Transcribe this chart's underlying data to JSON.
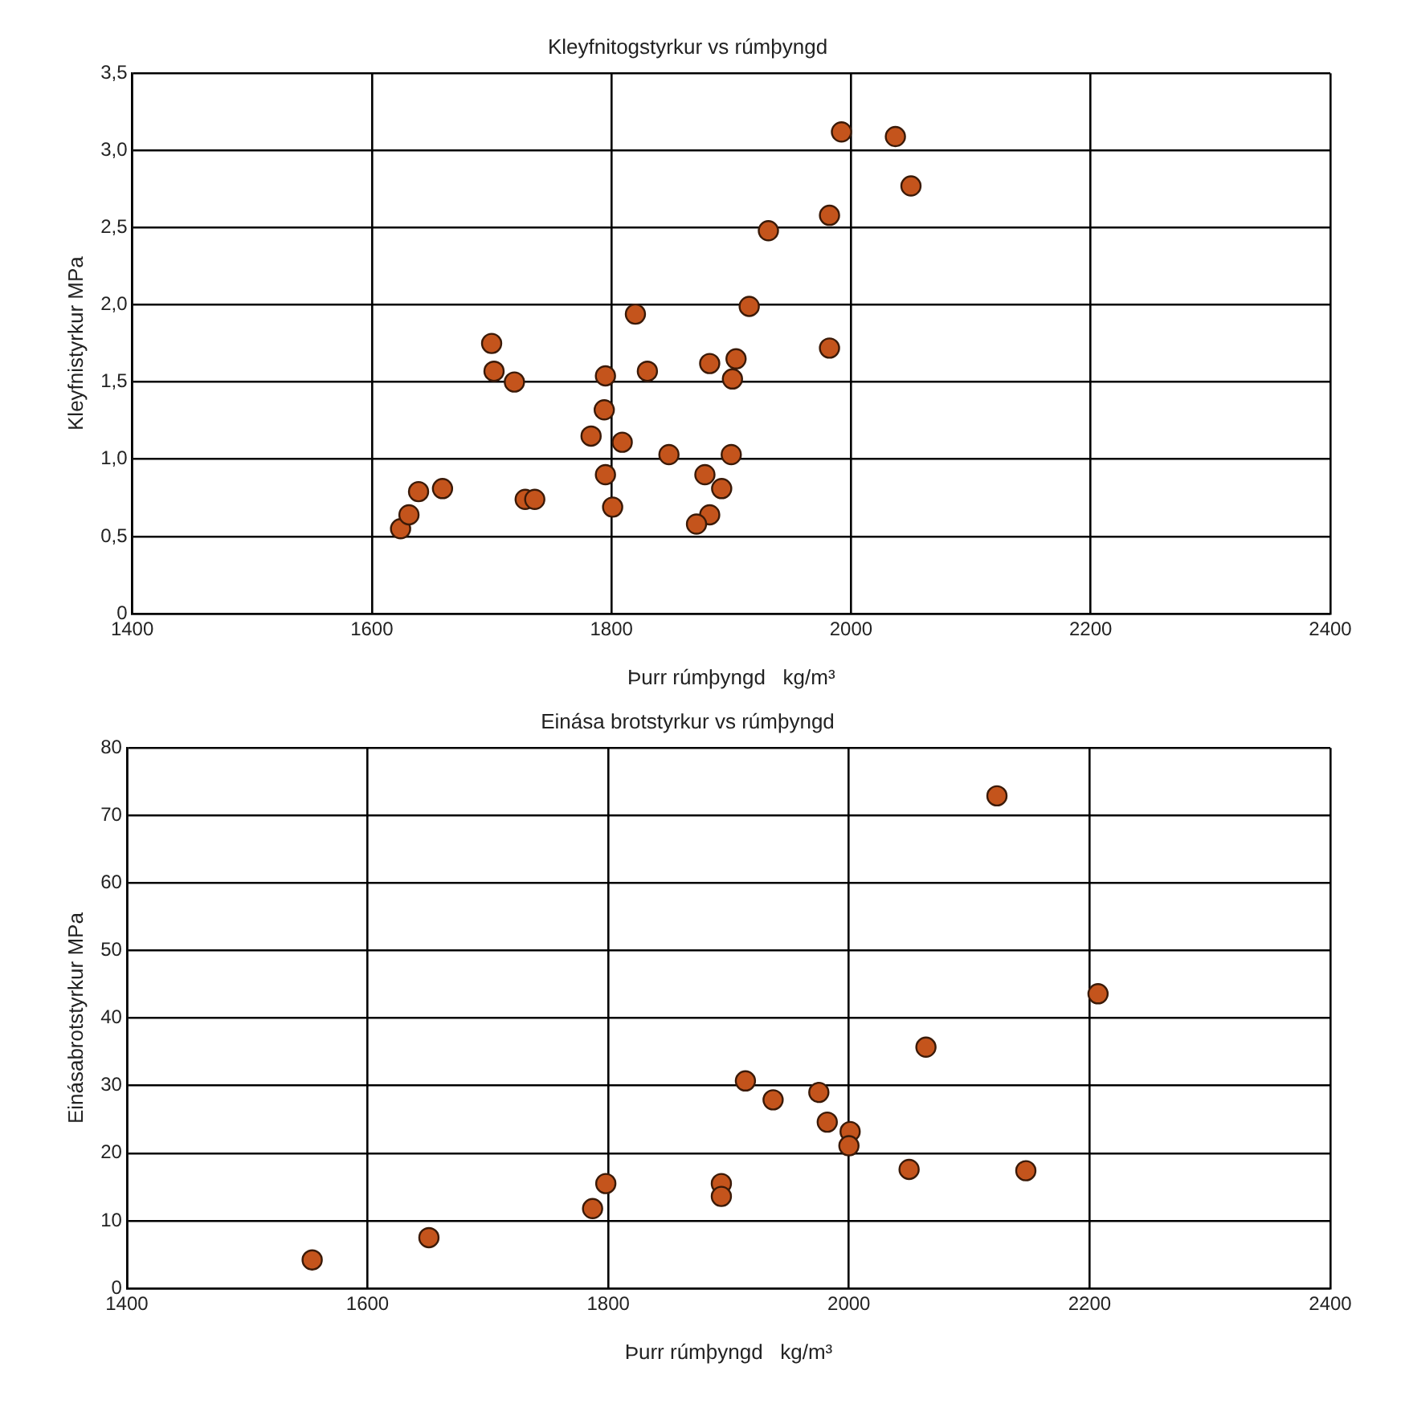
{
  "chart_data": [
    {
      "type": "scatter",
      "title": "Kleyfnitogstyrkur vs rúmþyngd",
      "xlabel": "Þurr rúmþyngd   kg/m³",
      "ylabel": "Kleyfnistyrkur MPa",
      "xlim": [
        1400,
        2400
      ],
      "xticks": [
        1400,
        1600,
        1800,
        2000,
        2200,
        2400
      ],
      "ylim": [
        0,
        3.5
      ],
      "yticks": [
        0,
        {
          "value": 0.5,
          "label": "0,5"
        },
        {
          "value": 1,
          "label": "1,0"
        },
        {
          "value": 1.5,
          "label": "1,5"
        },
        {
          "value": 2,
          "label": "2,0"
        },
        {
          "value": 2.5,
          "label": "2,5"
        },
        {
          "value": 3,
          "label": "3,0"
        },
        {
          "value": 3.5,
          "label": "3,5"
        }
      ],
      "grid": true,
      "marker": "circle",
      "series": [
        {
          "color": "#c4541c",
          "x": [
            1624,
            1631,
            1639,
            1659,
            1700,
            1702,
            1719,
            1728,
            1736,
            1783,
            1795,
            1794,
            1795,
            1801,
            1809,
            1820,
            1830,
            1848,
            1992,
            2037,
            2050,
            1982,
            1931,
            1915,
            1982,
            1882,
            1904,
            1901,
            1900,
            1878,
            1892,
            1882,
            1871
          ],
          "values": [
            0.55,
            0.64,
            0.79,
            0.81,
            1.75,
            1.57,
            1.5,
            0.74,
            0.74,
            1.15,
            1.54,
            1.32,
            0.9,
            0.69,
            1.11,
            1.94,
            1.57,
            1.03,
            3.12,
            3.09,
            2.77,
            2.58,
            2.48,
            1.99,
            1.72,
            1.62,
            1.65,
            1.52,
            1.03,
            0.9,
            0.81,
            0.64,
            0.58
          ]
        }
      ]
    },
    {
      "type": "scatter",
      "title": "Einása brotstyrkur vs rúmþyngd",
      "xlabel": "Þurr rúmþyngd   kg/m³",
      "ylabel": "Einásabrotstyrkur MPa",
      "xlim": [
        1400,
        2400
      ],
      "xticks": [
        1400,
        1600,
        1800,
        2000,
        2200,
        2400
      ],
      "ylim": [
        0,
        80
      ],
      "yticks": [
        0,
        10,
        20,
        30,
        40,
        50,
        60,
        70,
        80
      ],
      "grid": true,
      "marker": "circle",
      "series": [
        {
          "color": "#c4541c",
          "x": [
            1554,
            1651,
            1787,
            1798,
            2123,
            2207,
            2064,
            1914,
            1937,
            1975,
            1982,
            2001,
            2000,
            2050,
            2147,
            1894,
            1894
          ],
          "values": [
            4.2,
            7.5,
            11.8,
            15.5,
            72.9,
            43.6,
            35.7,
            30.7,
            27.9,
            29.0,
            24.6,
            23.2,
            21.1,
            17.6,
            17.4,
            15.5,
            13.6
          ]
        }
      ]
    }
  ]
}
